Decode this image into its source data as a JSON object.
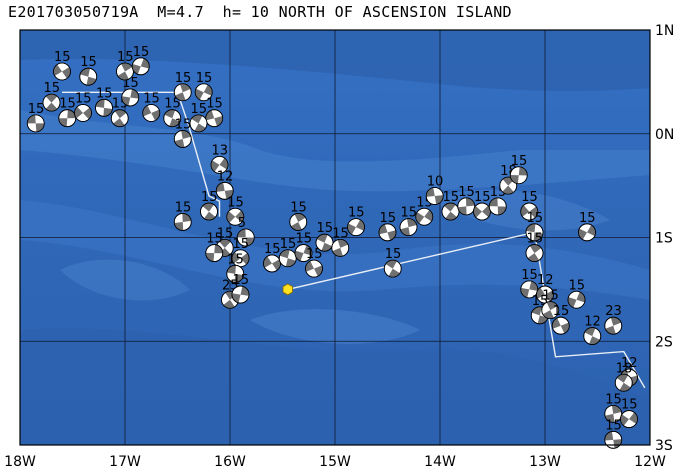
{
  "title": "E201703050719A  M=4.7  h= 10 NORTH OF ASCENSION ISLAND",
  "lon_labels": [
    "18W",
    "17W",
    "16W",
    "15W",
    "14W",
    "13W",
    "12W"
  ],
  "lat_labels": [
    "1N",
    "0N",
    "1S",
    "2S",
    "3S"
  ],
  "colors": {
    "ocean_deep": "#2a5ea8",
    "ocean_mid": "#3a72c2",
    "ocean_light": "#5b90d8",
    "ridge": "#e8eef6",
    "epicenter": "#ffe020",
    "grid": "#101830"
  },
  "map_extent": {
    "lon_min": -18,
    "lon_max": -12,
    "lat_min": -3,
    "lat_max": 1
  },
  "epicenter": {
    "lon": -15.45,
    "lat": -1.5
  },
  "events": [
    {
      "lon": -17.85,
      "lat": 0.1,
      "depth": "15"
    },
    {
      "lon": -17.7,
      "lat": 0.3,
      "depth": "15"
    },
    {
      "lon": -17.55,
      "lat": 0.15,
      "depth": "15"
    },
    {
      "lon": -17.4,
      "lat": 0.2,
      "depth": "15"
    },
    {
      "lon": -17.2,
      "lat": 0.25,
      "depth": "15"
    },
    {
      "lon": -17.05,
      "lat": 0.15,
      "depth": "15"
    },
    {
      "lon": -16.95,
      "lat": 0.35,
      "depth": "15"
    },
    {
      "lon": -17.6,
      "lat": 0.6,
      "depth": "15"
    },
    {
      "lon": -17.35,
      "lat": 0.55,
      "depth": "15"
    },
    {
      "lon": -17.0,
      "lat": 0.6,
      "depth": "15"
    },
    {
      "lon": -16.85,
      "lat": 0.65,
      "depth": "15"
    },
    {
      "lon": -16.75,
      "lat": 0.2,
      "depth": "15"
    },
    {
      "lon": -16.55,
      "lat": 0.15,
      "depth": "15"
    },
    {
      "lon": -16.45,
      "lat": 0.4,
      "depth": "15"
    },
    {
      "lon": -16.25,
      "lat": 0.4,
      "depth": "15"
    },
    {
      "lon": -16.15,
      "lat": 0.15,
      "depth": "15"
    },
    {
      "lon": -16.3,
      "lat": 0.1,
      "depth": "15"
    },
    {
      "lon": -16.45,
      "lat": -0.05,
      "depth": "15"
    },
    {
      "lon": -16.1,
      "lat": -0.3,
      "depth": "13"
    },
    {
      "lon": -16.05,
      "lat": -0.55,
      "depth": "12"
    },
    {
      "lon": -16.2,
      "lat": -0.75,
      "depth": "15"
    },
    {
      "lon": -16.45,
      "lat": -0.85,
      "depth": "15"
    },
    {
      "lon": -15.95,
      "lat": -0.8,
      "depth": "15"
    },
    {
      "lon": -15.85,
      "lat": -1.0,
      "depth": "5"
    },
    {
      "lon": -16.05,
      "lat": -1.1,
      "depth": "15"
    },
    {
      "lon": -16.15,
      "lat": -1.15,
      "depth": "15"
    },
    {
      "lon": -15.9,
      "lat": -1.2,
      "depth": "15"
    },
    {
      "lon": -15.95,
      "lat": -1.35,
      "depth": "15"
    },
    {
      "lon": -16.0,
      "lat": -1.6,
      "depth": "25"
    },
    {
      "lon": -15.9,
      "lat": -1.55,
      "depth": "15"
    },
    {
      "lon": -15.6,
      "lat": -1.25,
      "depth": "15"
    },
    {
      "lon": -15.45,
      "lat": -1.2,
      "depth": "15"
    },
    {
      "lon": -15.35,
      "lat": -0.85,
      "depth": "15"
    },
    {
      "lon": -15.3,
      "lat": -1.15,
      "depth": "15"
    },
    {
      "lon": -15.2,
      "lat": -1.3,
      "depth": "15"
    },
    {
      "lon": -15.1,
      "lat": -1.05,
      "depth": "15"
    },
    {
      "lon": -14.95,
      "lat": -1.1,
      "depth": "15"
    },
    {
      "lon": -14.8,
      "lat": -0.9,
      "depth": "15"
    },
    {
      "lon": -14.5,
      "lat": -0.95,
      "depth": "15"
    },
    {
      "lon": -14.45,
      "lat": -1.3,
      "depth": "15"
    },
    {
      "lon": -14.3,
      "lat": -0.9,
      "depth": "15"
    },
    {
      "lon": -14.15,
      "lat": -0.8,
      "depth": "15"
    },
    {
      "lon": -14.05,
      "lat": -0.6,
      "depth": "10"
    },
    {
      "lon": -13.9,
      "lat": -0.75,
      "depth": "15"
    },
    {
      "lon": -13.75,
      "lat": -0.7,
      "depth": "15"
    },
    {
      "lon": -13.6,
      "lat": -0.75,
      "depth": "15"
    },
    {
      "lon": -13.45,
      "lat": -0.7,
      "depth": "15"
    },
    {
      "lon": -13.35,
      "lat": -0.5,
      "depth": "18"
    },
    {
      "lon": -13.25,
      "lat": -0.4,
      "depth": "15"
    },
    {
      "lon": -13.15,
      "lat": -0.75,
      "depth": "15"
    },
    {
      "lon": -13.1,
      "lat": -0.95,
      "depth": "15"
    },
    {
      "lon": -13.1,
      "lat": -1.15,
      "depth": "15"
    },
    {
      "lon": -13.15,
      "lat": -1.5,
      "depth": "15"
    },
    {
      "lon": -13.0,
      "lat": -1.55,
      "depth": "12"
    },
    {
      "lon": -13.05,
      "lat": -1.75,
      "depth": "15"
    },
    {
      "lon": -12.95,
      "lat": -1.7,
      "depth": "15"
    },
    {
      "lon": -12.7,
      "lat": -1.6,
      "depth": "15"
    },
    {
      "lon": -12.85,
      "lat": -1.85,
      "depth": "15"
    },
    {
      "lon": -12.55,
      "lat": -1.95,
      "depth": "12"
    },
    {
      "lon": -12.35,
      "lat": -1.85,
      "depth": "23"
    },
    {
      "lon": -12.6,
      "lat": -0.95,
      "depth": "15"
    },
    {
      "lon": -12.2,
      "lat": -2.35,
      "depth": "12"
    },
    {
      "lon": -12.25,
      "lat": -2.4,
      "depth": "18"
    },
    {
      "lon": -12.35,
      "lat": -2.7,
      "depth": "15"
    },
    {
      "lon": -12.2,
      "lat": -2.75,
      "depth": "15"
    },
    {
      "lon": -12.35,
      "lat": -2.95,
      "depth": "15"
    }
  ],
  "ridge_path": [
    {
      "lon": -17.6,
      "lat": 0.4
    },
    {
      "lon": -16.5,
      "lat": 0.4
    },
    {
      "lon": -16.4,
      "lat": 0.1
    },
    {
      "lon": -16.2,
      "lat": -0.6
    },
    {
      "lon": -16.1,
      "lat": -0.65
    },
    {
      "lon": -16.1,
      "lat": -0.8
    }
  ],
  "ridge_path2": [
    {
      "lon": -15.45,
      "lat": -1.5
    },
    {
      "lon": -13.1,
      "lat": -0.95
    },
    {
      "lon": -12.9,
      "lat": -2.15
    },
    {
      "lon": -12.25,
      "lat": -2.1
    },
    {
      "lon": -12.05,
      "lat": -2.45
    }
  ]
}
